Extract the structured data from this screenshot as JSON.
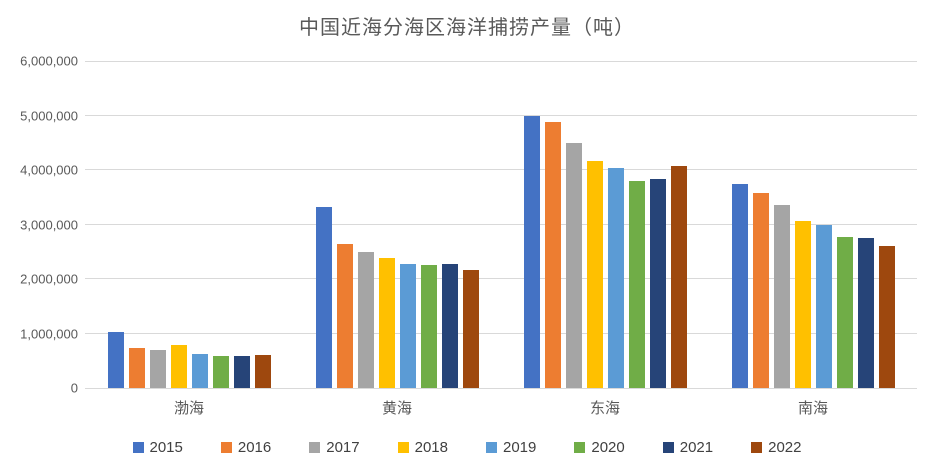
{
  "chart_data": {
    "type": "bar",
    "title": "中国近海分海区海洋捕捞产量（吨）",
    "xlabel": "",
    "ylabel": "",
    "categories": [
      "渤海",
      "黄海",
      "东海",
      "南海"
    ],
    "series": [
      {
        "name": "2015",
        "color": "#4472C4",
        "values": [
          1030000,
          3330000,
          5000000,
          3750000
        ]
      },
      {
        "name": "2016",
        "color": "#ED7D31",
        "values": [
          740000,
          2640000,
          4880000,
          3580000
        ]
      },
      {
        "name": "2017",
        "color": "#A5A5A5",
        "values": [
          700000,
          2500000,
          4490000,
          3360000
        ]
      },
      {
        "name": "2018",
        "color": "#FFC000",
        "values": [
          790000,
          2380000,
          4160000,
          3070000
        ]
      },
      {
        "name": "2019",
        "color": "#5B9BD5",
        "values": [
          630000,
          2270000,
          4040000,
          2990000
        ]
      },
      {
        "name": "2020",
        "color": "#70AD47",
        "values": [
          580000,
          2260000,
          3800000,
          2780000
        ]
      },
      {
        "name": "2021",
        "color": "#264478",
        "values": [
          590000,
          2270000,
          3840000,
          2760000
        ]
      },
      {
        "name": "2022",
        "color": "#9E480E",
        "values": [
          610000,
          2160000,
          4070000,
          2600000
        ]
      }
    ],
    "ylim": [
      0,
      6000000
    ],
    "ytick_interval": 1000000,
    "ytick_labels": [
      "6,000,000",
      "5,000,000",
      "4,000,000",
      "3,000,000",
      "2,000,000",
      "1,000,000",
      "0"
    ],
    "grid": true,
    "gridline_color": "#d9d9d9",
    "legend_position": "bottom",
    "title_color": "#595959",
    "axis_text_color": "#595959",
    "legend_text_color": "#404040",
    "background_color": "#ffffff"
  }
}
